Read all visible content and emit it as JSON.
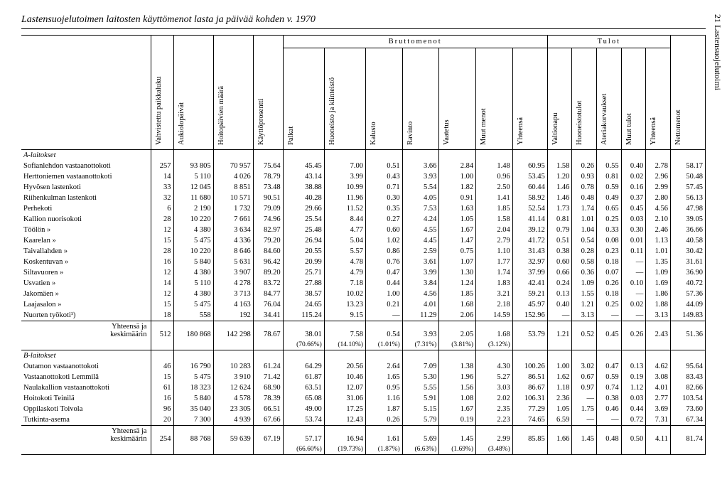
{
  "title": "Lastensuojelutoimen laitosten käyttömenot lasta ja päivää kohden v. 1970",
  "side_label": "21 Lastensuojelutoimi",
  "col_headers": {
    "label": "",
    "vahv": "Vahvistettu paikkaluku",
    "aukio": "Aukiolopäivät",
    "hoito": "Hoitopäivien määrä",
    "kaytto": "Käyttöprosentti",
    "brutto": "Bruttomenot",
    "palkat": "Palkat",
    "huone": "Huoneisto ja kiinteistö",
    "kalusto": "Kalusto",
    "ravinto": "Ravinto",
    "vaatetus": "Vaatetus",
    "muutm": "Muut menot",
    "yht1": "Yhteensä",
    "tulot": "Tulot",
    "valtio": "Valtionapu",
    "huonetul": "Huoneistotulot",
    "ateria": "Ateriakorvaukset",
    "muutt": "Muut tulot",
    "yht2": "Yhteensä",
    "netto": "Nettomenot"
  },
  "sections": {
    "a_title": "A-laitokset",
    "b_title": "B-laitokset"
  },
  "rows_a": [
    {
      "label": "Sofianlehdon vastaanotto­koti",
      "vals": [
        "257",
        "93 805",
        "70 957",
        "75.64",
        "45.45",
        "7.00",
        "0.51",
        "3.66",
        "2.84",
        "1.48",
        "60.95",
        "1.58",
        "0.26",
        "0.55",
        "0.40",
        "2.78",
        "58.17"
      ]
    },
    {
      "label": "Herttoniemen vastaanot­tokoti",
      "vals": [
        "14",
        "5 110",
        "4 026",
        "78.79",
        "43.14",
        "3.99",
        "0.43",
        "3.93",
        "1.00",
        "0.96",
        "53.45",
        "1.20",
        "0.93",
        "0.81",
        "0.02",
        "2.96",
        "50.48"
      ]
    },
    {
      "label": "Hyvösen lastenkoti",
      "vals": [
        "33",
        "12 045",
        "8 851",
        "73.48",
        "38.88",
        "10.99",
        "0.71",
        "5.54",
        "1.82",
        "2.50",
        "60.44",
        "1.46",
        "0.78",
        "0.59",
        "0.16",
        "2.99",
        "57.45"
      ]
    },
    {
      "label": "Riihenkulman lastenkoti",
      "vals": [
        "32",
        "11 680",
        "10 571",
        "90.51",
        "40.28",
        "11.96",
        "0.30",
        "4.05",
        "0.91",
        "1.41",
        "58.92",
        "1.46",
        "0.48",
        "0.49",
        "0.37",
        "2.80",
        "56.13"
      ]
    },
    {
      "label": "Perhekoti",
      "vals": [
        "6",
        "2 190",
        "1 732",
        "79.09",
        "29.66",
        "11.52",
        "0.35",
        "7.53",
        "1.63",
        "1.85",
        "52.54",
        "1.73",
        "1.74",
        "0.65",
        "0.45",
        "4.56",
        "47.98"
      ]
    },
    {
      "label": "Kallion nuorisokoti",
      "vals": [
        "28",
        "10 220",
        "7 661",
        "74.96",
        "25.54",
        "8.44",
        "0.27",
        "4.24",
        "1.05",
        "1.58",
        "41.14",
        "0.81",
        "1.01",
        "0.25",
        "0.03",
        "2.10",
        "39.05"
      ]
    },
    {
      "label": "Töölön      »",
      "vals": [
        "12",
        "4 380",
        "3 634",
        "82.97",
        "25.48",
        "4.77",
        "0.60",
        "4.55",
        "1.67",
        "2.04",
        "39.12",
        "0.79",
        "1.04",
        "0.33",
        "0.30",
        "2.46",
        "36.66"
      ]
    },
    {
      "label": "Kaarelan    »",
      "vals": [
        "15",
        "5 475",
        "4 336",
        "79.20",
        "26.94",
        "5.04",
        "1.02",
        "4.45",
        "1.47",
        "2.79",
        "41.72",
        "0.51",
        "0.54",
        "0.08",
        "0.01",
        "1.13",
        "40.58"
      ]
    },
    {
      "label": "Taivallahden »",
      "vals": [
        "28",
        "10 220",
        "8 646",
        "84.60",
        "20.55",
        "5.57",
        "0.86",
        "2.59",
        "0.75",
        "1.10",
        "31.43",
        "0.38",
        "0.28",
        "0.23",
        "0.11",
        "1.01",
        "30.42"
      ]
    },
    {
      "label": "Koskentuvan »",
      "vals": [
        "16",
        "5 840",
        "5 631",
        "96.42",
        "20.99",
        "4.78",
        "0.76",
        "3.61",
        "1.07",
        "1.77",
        "32.97",
        "0.60",
        "0.58",
        "0.18",
        "—",
        "1.35",
        "31.61"
      ]
    },
    {
      "label": "Siltavuoren »",
      "vals": [
        "12",
        "4 380",
        "3 907",
        "89.20",
        "25.71",
        "4.79",
        "0.47",
        "3.99",
        "1.30",
        "1.74",
        "37.99",
        "0.66",
        "0.36",
        "0.07",
        "—",
        "1.09",
        "36.90"
      ]
    },
    {
      "label": "Usvatien    »",
      "vals": [
        "14",
        "5 110",
        "4 278",
        "83.72",
        "27.88",
        "7.18",
        "0.44",
        "3.84",
        "1.24",
        "1.83",
        "42.41",
        "0.24",
        "1.09",
        "0.26",
        "0.10",
        "1.69",
        "40.72"
      ]
    },
    {
      "label": "Jakomäen    »",
      "vals": [
        "12",
        "4 380",
        "3 713",
        "84.77",
        "38.57",
        "10.02",
        "1.00",
        "4.56",
        "1.85",
        "3.21",
        "59.21",
        "0.13",
        "1.55",
        "0.18",
        "—",
        "1.86",
        "57.36"
      ]
    },
    {
      "label": "Laajasalon  »",
      "vals": [
        "15",
        "5 475",
        "4 163",
        "76.04",
        "24.65",
        "13.23",
        "0.21",
        "4.01",
        "1.68",
        "2.18",
        "45.97",
        "0.40",
        "1.21",
        "0.25",
        "0.02",
        "1.88",
        "44.09"
      ]
    },
    {
      "label": "Nuorten työkoti¹)",
      "vals": [
        "18",
        "558",
        "192",
        "34.41",
        "115.24",
        "9.15",
        "—",
        "11.29",
        "2.06",
        "14.59",
        "152.96",
        "—",
        "3.13",
        "—",
        "—",
        "3.13",
        "149.83"
      ]
    }
  ],
  "sum_a": {
    "label": "Yhteensä ja keskimäärin",
    "vals": [
      "512",
      "180 868",
      "142 298",
      "78.67",
      "38.01",
      "7.58",
      "0.54",
      "3.93",
      "2.05",
      "1.68",
      "53.79",
      "1.21",
      "0.52",
      "0.45",
      "0.26",
      "2.43",
      "51.36"
    ],
    "pct": [
      "",
      "",
      "",
      "",
      "(70.66%)",
      "(14.10%)",
      "(1.01%)",
      "(7.31%)",
      "(3.81%)",
      "(3.12%)",
      "",
      "",
      "",
      "",
      "",
      "",
      ""
    ]
  },
  "rows_b": [
    {
      "label": "Outamon vastaanottokoti",
      "vals": [
        "46",
        "16 790",
        "10 283",
        "61.24",
        "64.29",
        "20.56",
        "2.64",
        "7.09",
        "1.38",
        "4.30",
        "100.26",
        "1.00",
        "3.02",
        "0.47",
        "0.13",
        "4.62",
        "95.64"
      ]
    },
    {
      "label": "Vastaanottokoti Lemmilä",
      "vals": [
        "15",
        "5 475",
        "3 910",
        "71.42",
        "61.87",
        "10.46",
        "1.65",
        "5.30",
        "1.96",
        "5.27",
        "86.51",
        "1.62",
        "0.67",
        "0.59",
        "0.19",
        "3.08",
        "83.43"
      ]
    },
    {
      "label": "Naulakallion vastaanotto­koti",
      "vals": [
        "61",
        "18 323",
        "12 624",
        "68.90",
        "63.51",
        "12.07",
        "0.95",
        "5.55",
        "1.56",
        "3.03",
        "86.67",
        "1.18",
        "0.97",
        "0.74",
        "1.12",
        "4.01",
        "82.66"
      ]
    },
    {
      "label": "Hoitokoti Teinilä",
      "vals": [
        "16",
        "5 840",
        "4 578",
        "78.39",
        "65.08",
        "31.06",
        "1.16",
        "5.91",
        "1.08",
        "2.02",
        "106.31",
        "2.36",
        "—",
        "0.38",
        "0.03",
        "2.77",
        "103.54"
      ]
    },
    {
      "label": "Oppilaskoti Toivola",
      "vals": [
        "96",
        "35 040",
        "23 305",
        "66.51",
        "49.00",
        "17.25",
        "1.87",
        "5.15",
        "1.67",
        "2.35",
        "77.29",
        "1.05",
        "1.75",
        "0.46",
        "0.44",
        "3.69",
        "73.60"
      ]
    },
    {
      "label": "Tutkinta-asema",
      "vals": [
        "20",
        "7 300",
        "4 939",
        "67.66",
        "53.74",
        "12.43",
        "0.26",
        "5.79",
        "0.19",
        "2.23",
        "74.65",
        "6.59",
        "—",
        "—",
        "0.72",
        "7.31",
        "67.34"
      ]
    }
  ],
  "sum_b": {
    "label": "Yhteensä ja keskimäärin",
    "vals": [
      "254",
      "88 768",
      "59 639",
      "67.19",
      "57.17",
      "16.94",
      "1.61",
      "5.69",
      "1.45",
      "2.99",
      "85.85",
      "1.66",
      "1.45",
      "0.48",
      "0.50",
      "4.11",
      "81.74"
    ],
    "pct": [
      "",
      "",
      "",
      "",
      "(66.60%)",
      "(19.73%)",
      "(1.87%)",
      "(6.63%)",
      "(1.69%)",
      "(3.48%)",
      "",
      "",
      "",
      "",
      "",
      "",
      ""
    ]
  }
}
